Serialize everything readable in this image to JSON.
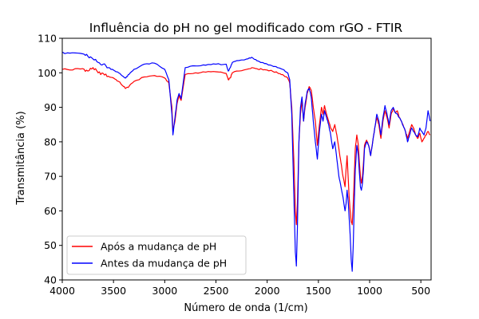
{
  "chart_data": {
    "type": "line",
    "title": "Influência do pH no gel modificado com rGO - FTIR",
    "xlabel": "Número de onda (1/cm)",
    "ylabel": "Transmitância (%)",
    "xlim": [
      4000,
      400
    ],
    "ylim": [
      40,
      110
    ],
    "xticks": [
      4000,
      3500,
      3000,
      2500,
      2000,
      1500,
      1000,
      500
    ],
    "yticks": [
      40,
      50,
      60,
      70,
      80,
      90,
      100,
      110
    ],
    "x_reversed": true,
    "grid": false,
    "legend_position": "lower-left",
    "series": [
      {
        "name": "Após a mudança de pH",
        "color": "#ff0000",
        "x": [
          4000,
          3900,
          3800,
          3750,
          3700,
          3650,
          3600,
          3550,
          3500,
          3450,
          3400,
          3380,
          3350,
          3300,
          3200,
          3100,
          3000,
          2960,
          2930,
          2920,
          2900,
          2880,
          2860,
          2840,
          2800,
          2700,
          2600,
          2500,
          2400,
          2380,
          2360,
          2340,
          2300,
          2200,
          2150,
          2100,
          2050,
          2000,
          1950,
          1900,
          1850,
          1800,
          1780,
          1760,
          1740,
          1725,
          1715,
          1705,
          1690,
          1675,
          1660,
          1645,
          1630,
          1610,
          1590,
          1570,
          1550,
          1530,
          1510,
          1490,
          1470,
          1455,
          1440,
          1420,
          1400,
          1380,
          1360,
          1340,
          1320,
          1300,
          1280,
          1260,
          1240,
          1230,
          1220,
          1210,
          1200,
          1190,
          1180,
          1170,
          1160,
          1150,
          1140,
          1125,
          1110,
          1100,
          1090,
          1080,
          1070,
          1060,
          1050,
          1030,
          1010,
          990,
          970,
          950,
          930,
          910,
          890,
          870,
          850,
          830,
          810,
          790,
          770,
          750,
          730,
          710,
          690,
          670,
          650,
          630,
          610,
          590,
          570,
          550,
          530,
          510,
          490,
          470,
          450,
          430,
          410
        ],
        "y": [
          101.0,
          100.8,
          101.2,
          100.5,
          101.5,
          100.0,
          99.8,
          99.0,
          98.5,
          97.5,
          96.0,
          95.5,
          96.0,
          97.5,
          98.8,
          99.2,
          98.5,
          97.0,
          90.0,
          83.0,
          86.0,
          91.0,
          93.5,
          92.0,
          99.5,
          100.0,
          100.2,
          100.3,
          99.8,
          98.0,
          98.5,
          100.0,
          100.5,
          101.0,
          101.5,
          101.2,
          101.0,
          100.8,
          100.5,
          100.0,
          99.5,
          98.5,
          97.0,
          90.0,
          75.0,
          60.0,
          56.0,
          62.0,
          80.0,
          88.0,
          92.0,
          86.0,
          90.0,
          94.0,
          96.0,
          95.0,
          90.0,
          86.0,
          79.0,
          85.0,
          90.0,
          88.0,
          90.5,
          88.0,
          86.0,
          84.0,
          83.0,
          85.0,
          82.0,
          78.0,
          74.0,
          70.0,
          67.0,
          72.0,
          76.0,
          70.0,
          64.0,
          60.0,
          57.0,
          56.0,
          62.0,
          70.0,
          78.0,
          82.0,
          79.0,
          74.0,
          70.0,
          68.0,
          70.0,
          74.0,
          79.0,
          80.5,
          79.0,
          76.0,
          80.0,
          84.0,
          87.0,
          85.0,
          81.0,
          86.0,
          89.0,
          87.0,
          84.0,
          88.0,
          89.5,
          88.5,
          89.0,
          87.0,
          86.0,
          84.5,
          83.0,
          81.0,
          83.0,
          85.0,
          84.0,
          82.0,
          81.0,
          82.5,
          80.0,
          81.0,
          82.0,
          83.0,
          82.0
        ],
        "notes": ""
      },
      {
        "name": "Antes da mudança de pH",
        "color": "#0000ff",
        "x": [
          4000,
          3900,
          3800,
          3750,
          3700,
          3650,
          3600,
          3550,
          3500,
          3450,
          3400,
          3380,
          3350,
          3300,
          3200,
          3100,
          3000,
          2960,
          2930,
          2920,
          2900,
          2880,
          2860,
          2840,
          2800,
          2700,
          2600,
          2500,
          2400,
          2380,
          2360,
          2340,
          2300,
          2200,
          2150,
          2100,
          2050,
          2000,
          1950,
          1900,
          1850,
          1800,
          1780,
          1760,
          1740,
          1725,
          1715,
          1705,
          1690,
          1675,
          1660,
          1645,
          1630,
          1610,
          1590,
          1570,
          1550,
          1530,
          1510,
          1490,
          1470,
          1455,
          1440,
          1420,
          1400,
          1380,
          1360,
          1340,
          1320,
          1300,
          1280,
          1260,
          1240,
          1230,
          1220,
          1210,
          1200,
          1190,
          1180,
          1170,
          1160,
          1150,
          1140,
          1125,
          1110,
          1100,
          1090,
          1080,
          1070,
          1060,
          1050,
          1030,
          1010,
          990,
          970,
          950,
          930,
          910,
          890,
          870,
          850,
          830,
          810,
          790,
          770,
          750,
          730,
          710,
          690,
          670,
          650,
          630,
          610,
          590,
          570,
          550,
          530,
          510,
          490,
          470,
          450,
          430,
          410
        ],
        "y": [
          106.0,
          105.8,
          105.5,
          104.8,
          104.0,
          103.0,
          102.5,
          101.5,
          100.8,
          100.0,
          98.8,
          98.5,
          99.5,
          101.0,
          102.5,
          102.8,
          101.0,
          98.0,
          88.0,
          82.0,
          87.0,
          92.0,
          94.0,
          92.5,
          101.5,
          102.0,
          102.2,
          102.5,
          102.5,
          100.5,
          101.5,
          103.0,
          103.5,
          104.0,
          104.5,
          103.5,
          103.0,
          102.5,
          102.0,
          101.5,
          101.0,
          100.0,
          98.0,
          88.0,
          65.0,
          48.0,
          44.0,
          55.0,
          80.0,
          90.0,
          93.0,
          86.0,
          91.0,
          94.5,
          95.5,
          93.0,
          86.0,
          80.0,
          75.0,
          83.0,
          88.0,
          86.0,
          89.0,
          87.0,
          85.0,
          82.0,
          78.0,
          80.0,
          75.0,
          70.0,
          67.0,
          64.0,
          60.0,
          62.0,
          66.0,
          63.0,
          58.0,
          53.0,
          46.0,
          42.5,
          50.0,
          62.0,
          72.0,
          79.0,
          76.0,
          71.0,
          67.0,
          66.0,
          68.0,
          72.0,
          78.0,
          80.0,
          79.0,
          76.0,
          80.0,
          84.0,
          88.0,
          86.0,
          82.0,
          87.0,
          90.5,
          88.0,
          85.0,
          89.0,
          90.0,
          88.5,
          88.0,
          87.0,
          86.0,
          84.5,
          83.0,
          80.0,
          82.0,
          84.0,
          83.0,
          82.0,
          81.5,
          84.0,
          83.0,
          82.0,
          84.0,
          89.0,
          86.0
        ],
        "notes": ""
      }
    ]
  }
}
